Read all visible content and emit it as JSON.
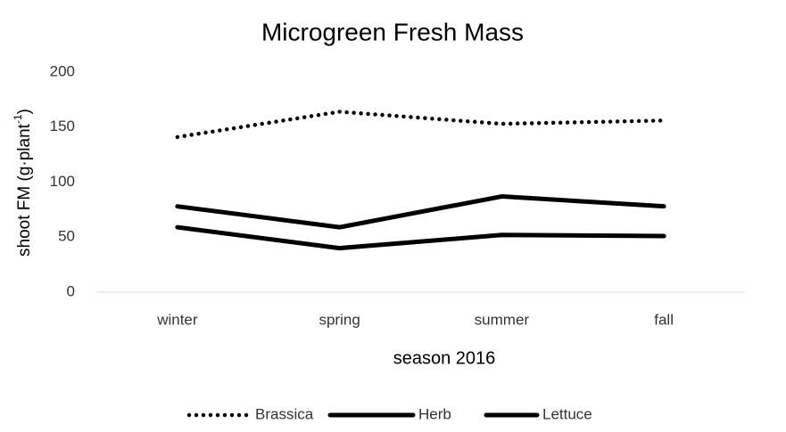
{
  "chart_data": {
    "type": "line",
    "title": "Microgreen Fresh Mass",
    "xlabel": "season 2016",
    "ylabel": {
      "text": "shoot FM (g·plant",
      "superscript": "-1",
      "suffix": ")"
    },
    "categories": [
      "winter",
      "spring",
      "summer",
      "fall"
    ],
    "series": [
      {
        "name": "Brassica",
        "color": "#000000",
        "style": "dotted",
        "values": [
          141,
          164,
          153,
          156
        ]
      },
      {
        "name": "Herb",
        "color": "#000000",
        "style": "solid",
        "values": [
          78,
          59,
          87,
          78
        ]
      },
      {
        "name": "Lettuce",
        "color": "#000000",
        "style": "solid",
        "values": [
          59,
          40,
          52,
          51
        ]
      }
    ],
    "ylim": [
      0,
      200
    ],
    "yticks": [
      0,
      50,
      100,
      150,
      200
    ],
    "grid": false,
    "legend": "bottom"
  }
}
